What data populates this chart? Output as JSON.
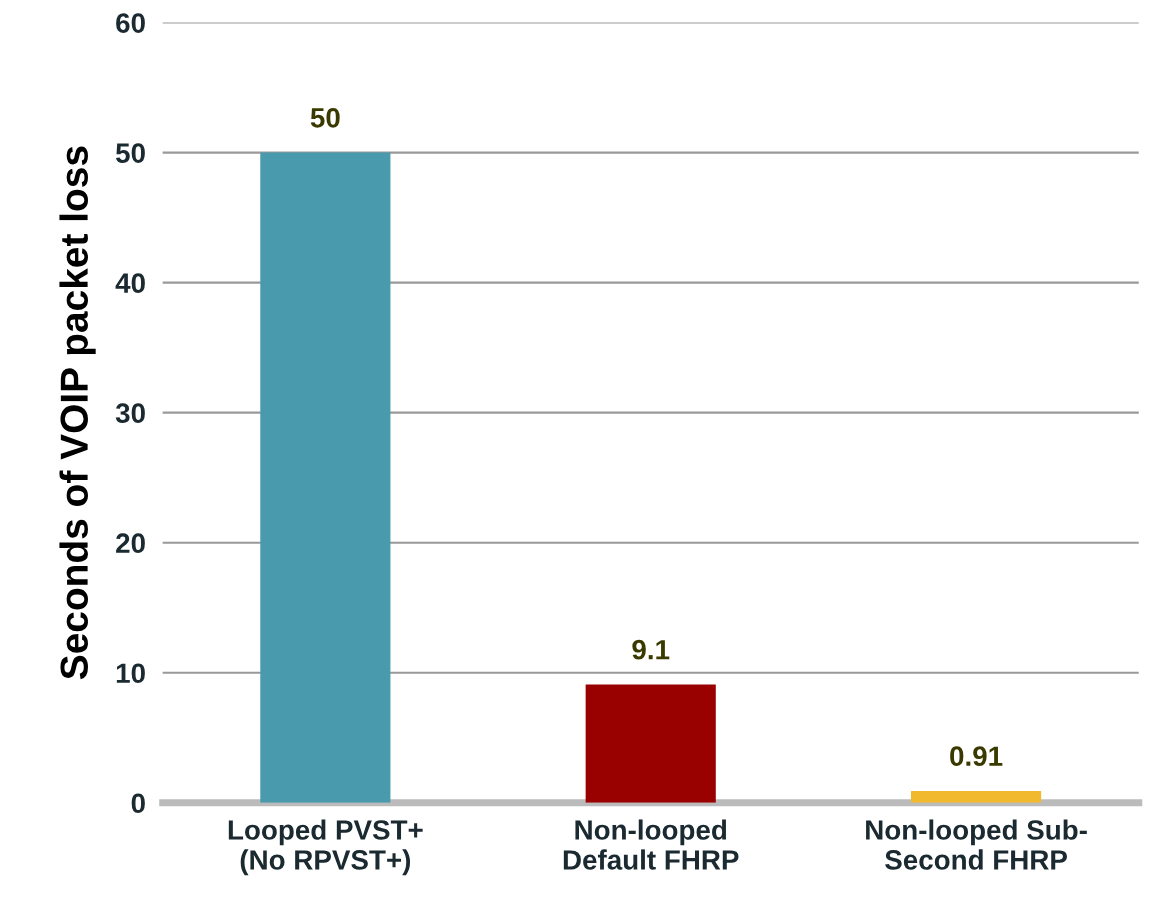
{
  "chart_data": {
    "type": "bar",
    "ylabel": "Seconds of VOIP packet loss",
    "categories": [
      "Looped PVST+\n(No RPVST+)",
      "Non-looped\nDefault FHRP",
      "Non-looped Sub-\nSecond FHRP"
    ],
    "values": [
      50,
      9.1,
      0.91
    ],
    "colors": [
      "#4a9aae",
      "#990000",
      "#f0b92e"
    ],
    "data_labels": true,
    "ylim": [
      0,
      60
    ],
    "yticks": [
      0,
      10,
      20,
      30,
      40,
      50,
      60
    ],
    "grid": "y"
  }
}
